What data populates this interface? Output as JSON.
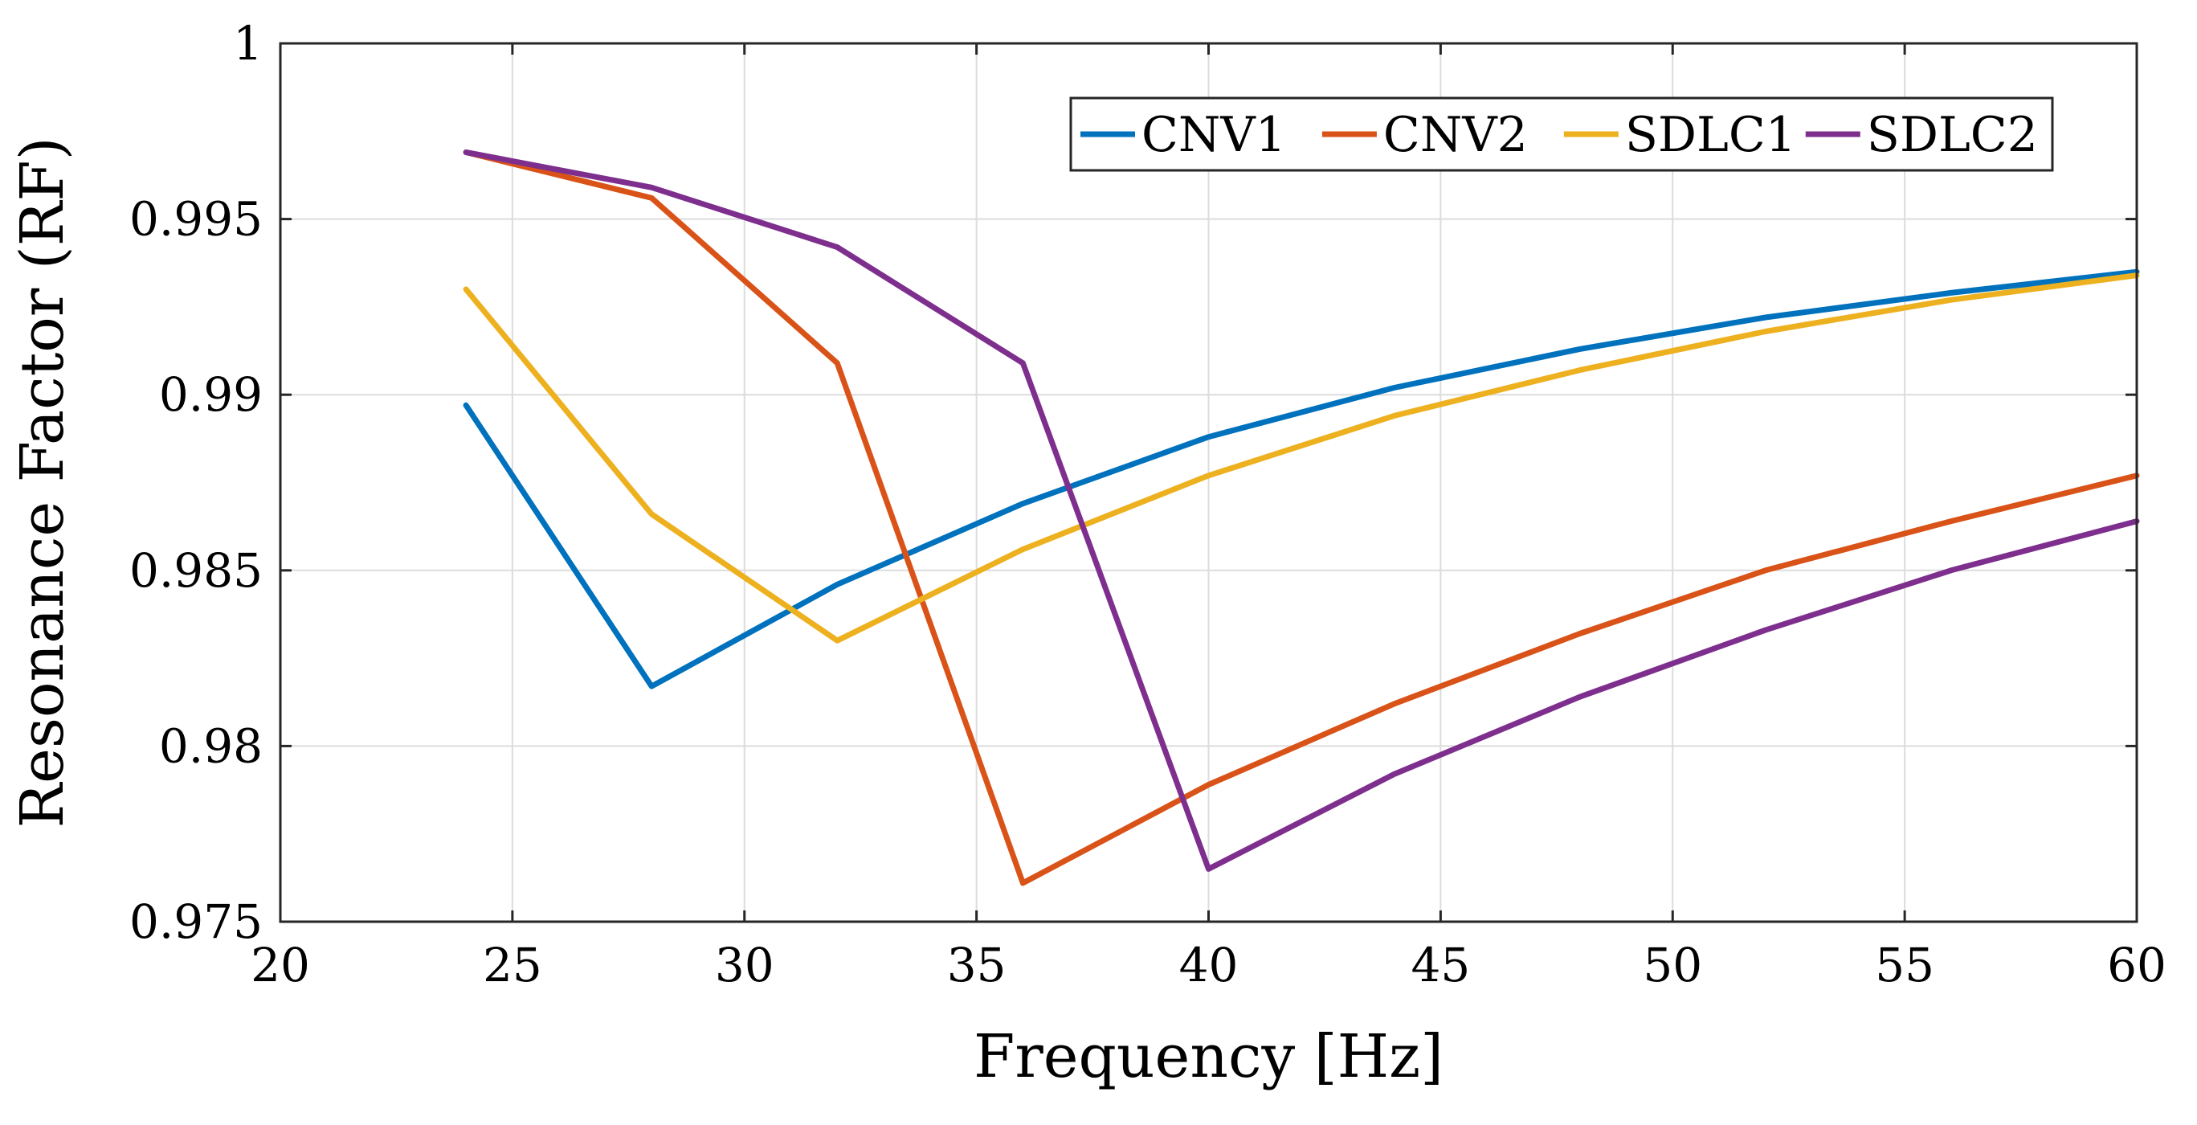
{
  "chart_data": {
    "type": "line",
    "title": "",
    "xlabel": "Frequency [Hz]",
    "ylabel": "Resonance Factor (RF)",
    "xlim": [
      20,
      60
    ],
    "ylim": [
      0.975,
      1
    ],
    "xticks": [
      20,
      25,
      30,
      35,
      40,
      45,
      50,
      55,
      60
    ],
    "yticks": [
      0.975,
      0.98,
      0.985,
      0.99,
      0.995,
      1
    ],
    "xtick_labels": [
      "20",
      "25",
      "30",
      "35",
      "40",
      "45",
      "50",
      "55",
      "60"
    ],
    "ytick_labels": [
      "0.975",
      "0.98",
      "0.985",
      "0.99",
      "0.995",
      "1"
    ],
    "grid": true,
    "legend_position": "top-right",
    "x": [
      24,
      28,
      32,
      36,
      40,
      44,
      48,
      52,
      56,
      60
    ],
    "series": [
      {
        "name": "CNV1",
        "color": "#0072BD",
        "values": [
          0.9897,
          0.9817,
          0.9846,
          0.9869,
          0.9888,
          0.9902,
          0.9913,
          0.9922,
          0.9929,
          0.9935
        ]
      },
      {
        "name": "CNV2",
        "color": "#D95319",
        "values": [
          0.9969,
          0.9956,
          0.9909,
          0.9761,
          0.9789,
          0.9812,
          0.9832,
          0.985,
          0.9864,
          0.9877
        ]
      },
      {
        "name": "SDLC1",
        "color": "#EDB120",
        "values": [
          0.993,
          0.9866,
          0.983,
          0.9856,
          0.9877,
          0.9894,
          0.9907,
          0.9918,
          0.9927,
          0.9934
        ]
      },
      {
        "name": "SDLC2",
        "color": "#7E2F8E",
        "values": [
          0.9969,
          0.9959,
          0.9942,
          0.9909,
          0.9765,
          0.9792,
          0.9814,
          0.9833,
          0.985,
          0.9864
        ]
      }
    ]
  }
}
